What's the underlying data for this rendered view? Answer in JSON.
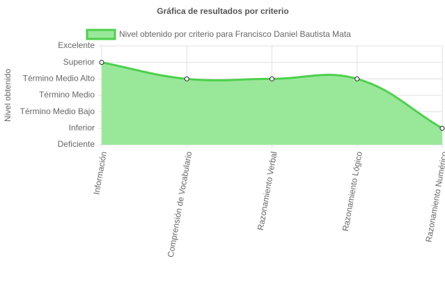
{
  "chart_data": {
    "type": "area",
    "title": "Gráfica de resultados por criterio",
    "y_label": "Nivel obtenido",
    "categories": [
      "Información",
      "Comprensión de Vocabulario",
      "Razonamiento Verbal",
      "Razonamiento Lógico",
      "Razonamiento Numérico"
    ],
    "series": [
      {
        "name": "Nivel obtenido por criterio para Francisco Daniel Bautista Mata",
        "color": "#4cd04c",
        "fill": "#99e899",
        "values": [
          5,
          4,
          4,
          4,
          1
        ]
      }
    ],
    "ylim": [
      0,
      6
    ],
    "yticks": [
      {
        "value": 0,
        "label": "Deficiente"
      },
      {
        "value": 1,
        "label": "Inferior"
      },
      {
        "value": 2,
        "label": "Término Medio Bajo"
      },
      {
        "value": 3,
        "label": "Término Medio"
      },
      {
        "value": 4,
        "label": "Término Medio Alto"
      },
      {
        "value": 5,
        "label": "Superior"
      },
      {
        "value": 6,
        "label": "Excelente"
      }
    ],
    "grid": true,
    "legend": "top"
  }
}
